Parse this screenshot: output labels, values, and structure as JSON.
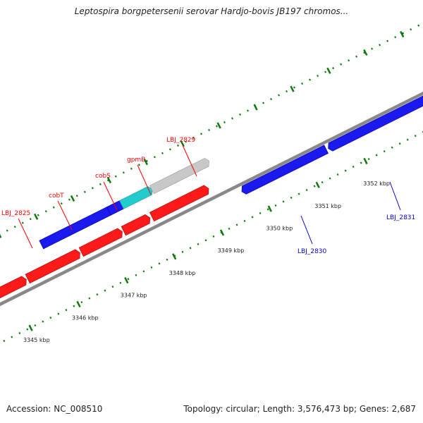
{
  "title": "Leptospira borgpetersenii serovar Hardjo-bovis JB197 chromos...",
  "footer": {
    "accession": "Accession: NC_008510",
    "summary": "Topology: circular; Length: 3,576,473 bp; Genes: 2,687"
  },
  "colors": {
    "forward_gene": "#1a1aee",
    "reverse_gene": "#ff1a1a",
    "highlight_gene": "#22cccc",
    "other_gene": "#c8c8c8",
    "tick": "#0a7a0a",
    "backbone": "#888888"
  },
  "ticks": [
    {
      "label": "3345 kbp",
      "kbp": 3345
    },
    {
      "label": "3346 kbp",
      "kbp": 3346
    },
    {
      "label": "3347 kbp",
      "kbp": 3347
    },
    {
      "label": "3348 kbp",
      "kbp": 3348
    },
    {
      "label": "3349 kbp",
      "kbp": 3349
    },
    {
      "label": "3350 kbp",
      "kbp": 3350
    },
    {
      "label": "3351 kbp",
      "kbp": 3351
    },
    {
      "label": "3352 kbp",
      "kbp": 3352
    }
  ],
  "gene_labels": [
    {
      "text": "LBJ_2825",
      "strand": "forward"
    },
    {
      "text": "cobT",
      "strand": "forward"
    },
    {
      "text": "cobS",
      "strand": "forward"
    },
    {
      "text": "gpmB",
      "strand": "forward"
    },
    {
      "text": "LBJ_2829",
      "strand": "forward"
    },
    {
      "text": "LBJ_2830",
      "strand": "reverse"
    },
    {
      "text": "LBJ_2831",
      "strand": "reverse"
    }
  ]
}
